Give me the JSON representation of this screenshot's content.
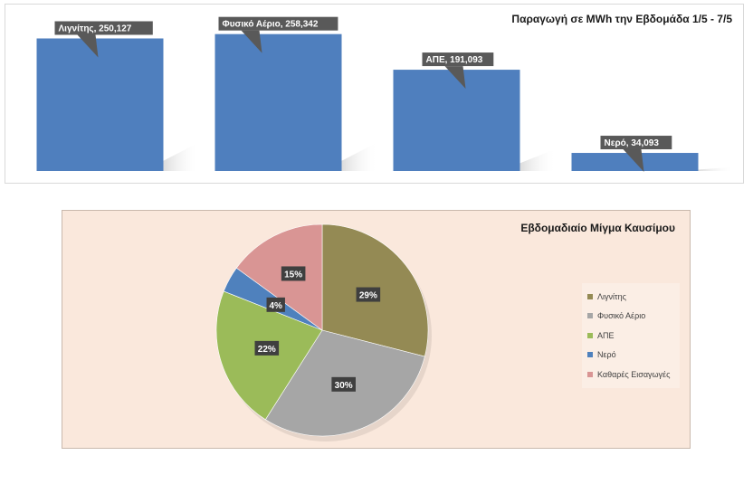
{
  "bar_chart": {
    "title": "Παραγωγή σε MWh την Εβδομάδα 1/5 - 7/5",
    "bar_color": "#4f7fbe",
    "label_bg": "#595959"
  },
  "pie_chart": {
    "title": "Εβδομαδιαίο Μίγμα Καυσίμου",
    "colors": [
      "#948a54",
      "#a6a6a6",
      "#9bbb59",
      "#4f81bd",
      "#d99594"
    ]
  },
  "chart_data": [
    {
      "type": "bar",
      "title": "Παραγωγή σε MWh την Εβδομάδα 1/5 - 7/5",
      "categories": [
        "Λιγνίτης",
        "Φυσικό Αέριο",
        "ΑΠΕ",
        "Νερό"
      ],
      "values": [
        250127,
        258342,
        191093,
        34093
      ],
      "data_labels": [
        "Λιγνίτης, 250,127",
        "Φυσικό Αέριο, 258,342",
        "ΑΠΕ, 191,093",
        "Νερό, 34,093"
      ],
      "ylim": [
        0,
        280000
      ],
      "grid": false,
      "legend": "none"
    },
    {
      "type": "pie",
      "title": "Εβδομαδιαίο Μίγμα Καυσίμου",
      "categories": [
        "Λιγνίτης",
        "Φυσικό Αέριο",
        "ΑΠΕ",
        "Νερό",
        "Καθαρές Εισαγωγές"
      ],
      "values": [
        29,
        30,
        22,
        4,
        15
      ],
      "data_labels": [
        "29%",
        "30%",
        "22%",
        "4%",
        "15%"
      ],
      "legend": "right"
    }
  ]
}
